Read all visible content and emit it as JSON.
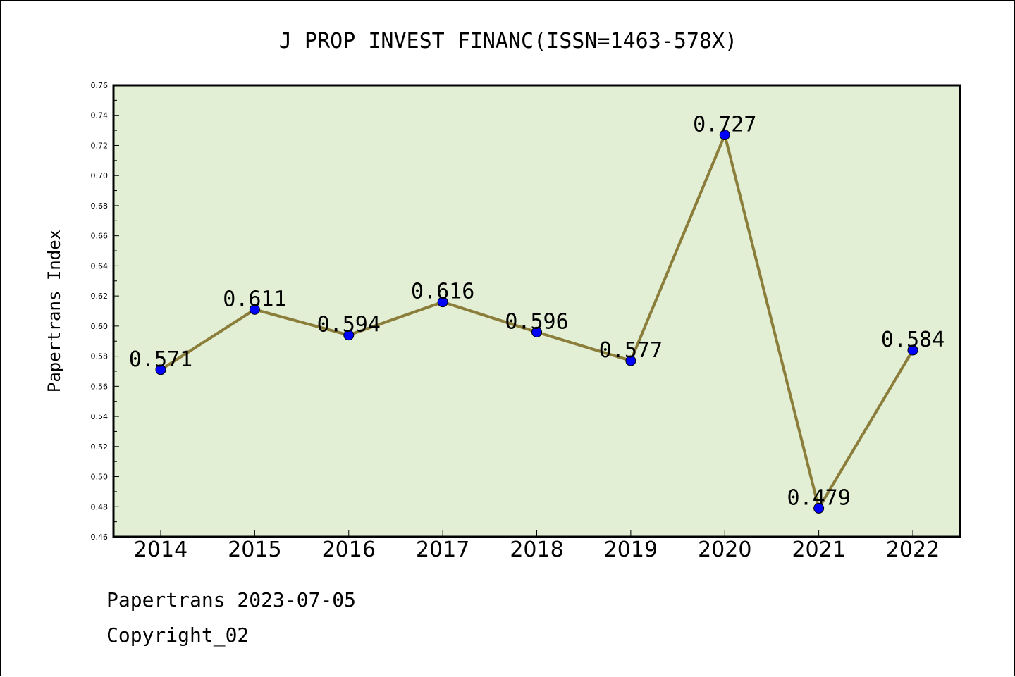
{
  "chart_data": {
    "type": "line",
    "title": "J PROP INVEST FINANC(ISSN=1463-578X)",
    "xlabel": "",
    "ylabel": "Papertrans Index",
    "categories": [
      "2014",
      "2015",
      "2016",
      "2017",
      "2018",
      "2019",
      "2020",
      "2021",
      "2022"
    ],
    "values": [
      0.571,
      0.611,
      0.594,
      0.616,
      0.596,
      0.577,
      0.727,
      0.479,
      0.584
    ],
    "data_labels": [
      "0.571",
      "0.611",
      "0.594",
      "0.616",
      "0.596",
      "0.577",
      "0.727",
      "0.479",
      "0.584"
    ],
    "ylim": [
      0.46,
      0.76
    ],
    "yticks": [
      "0.46",
      "0.48",
      "0.50",
      "0.52",
      "0.54",
      "0.56",
      "0.58",
      "0.60",
      "0.62",
      "0.64",
      "0.66",
      "0.68",
      "0.70",
      "0.72",
      "0.74",
      "0.76"
    ],
    "grid": false,
    "colors": {
      "plot_background": "#e2efd5",
      "line": "#8b7d3a",
      "marker": "#0000ff"
    }
  },
  "footer": {
    "line1": "Papertrans 2023-07-05",
    "line2": "Copyright_02"
  }
}
